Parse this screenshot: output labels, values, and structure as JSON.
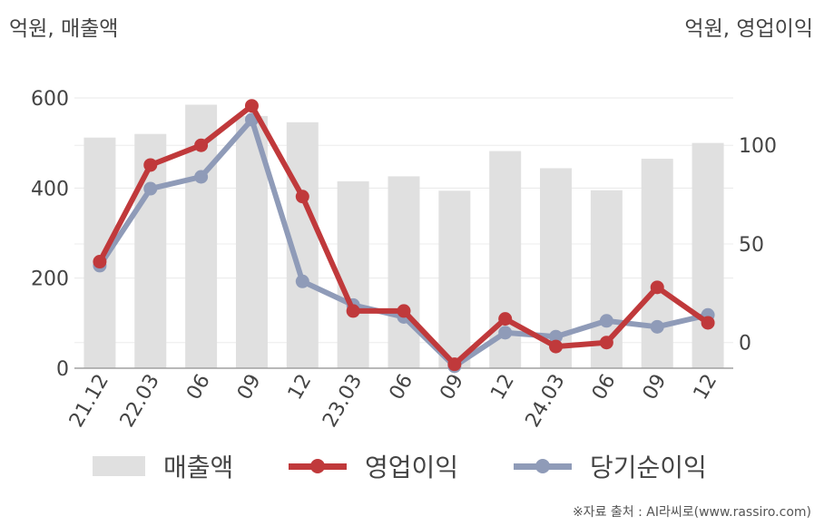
{
  "header": {
    "left_unit": "억원, 매출액",
    "right_unit": "억원, 영업이익"
  },
  "chart_data": {
    "type": "bar",
    "categories": [
      "21.12",
      "22.03",
      "06",
      "09",
      "12",
      "23.03",
      "06",
      "09",
      "12",
      "24.03",
      "06",
      "09",
      "12"
    ],
    "y_left": {
      "ylim": [
        0,
        600
      ],
      "ticks": [
        "0",
        "200",
        "400",
        "600"
      ]
    },
    "y_right": {
      "ylim": [
        -13,
        124
      ],
      "ticks": [
        "0",
        "50",
        "100"
      ]
    },
    "grid": true,
    "legend_position": "bottom",
    "series": [
      {
        "name": "매출액",
        "type": "bar",
        "axis": "left",
        "color": "#e0e0e0",
        "values": [
          512,
          520,
          585,
          560,
          546,
          415,
          426,
          394,
          482,
          444,
          395,
          465,
          500
        ]
      },
      {
        "name": "영업이익",
        "type": "line",
        "axis": "right",
        "color": "#c0393b",
        "values": [
          41,
          90,
          100,
          120,
          74,
          16,
          16,
          -11,
          12,
          -2,
          0,
          28,
          10
        ]
      },
      {
        "name": "당기순이익",
        "type": "line",
        "axis": "right",
        "color": "#8f9bb8",
        "values": [
          39,
          78,
          84,
          113,
          31,
          19,
          13,
          -12,
          5,
          3,
          11,
          8,
          14
        ]
      }
    ]
  },
  "legend": {
    "items": [
      "매출액",
      "영업이익",
      "당기순이익"
    ]
  },
  "source": "※자료 출처 : AI라씨로(www.rassiro.com)"
}
